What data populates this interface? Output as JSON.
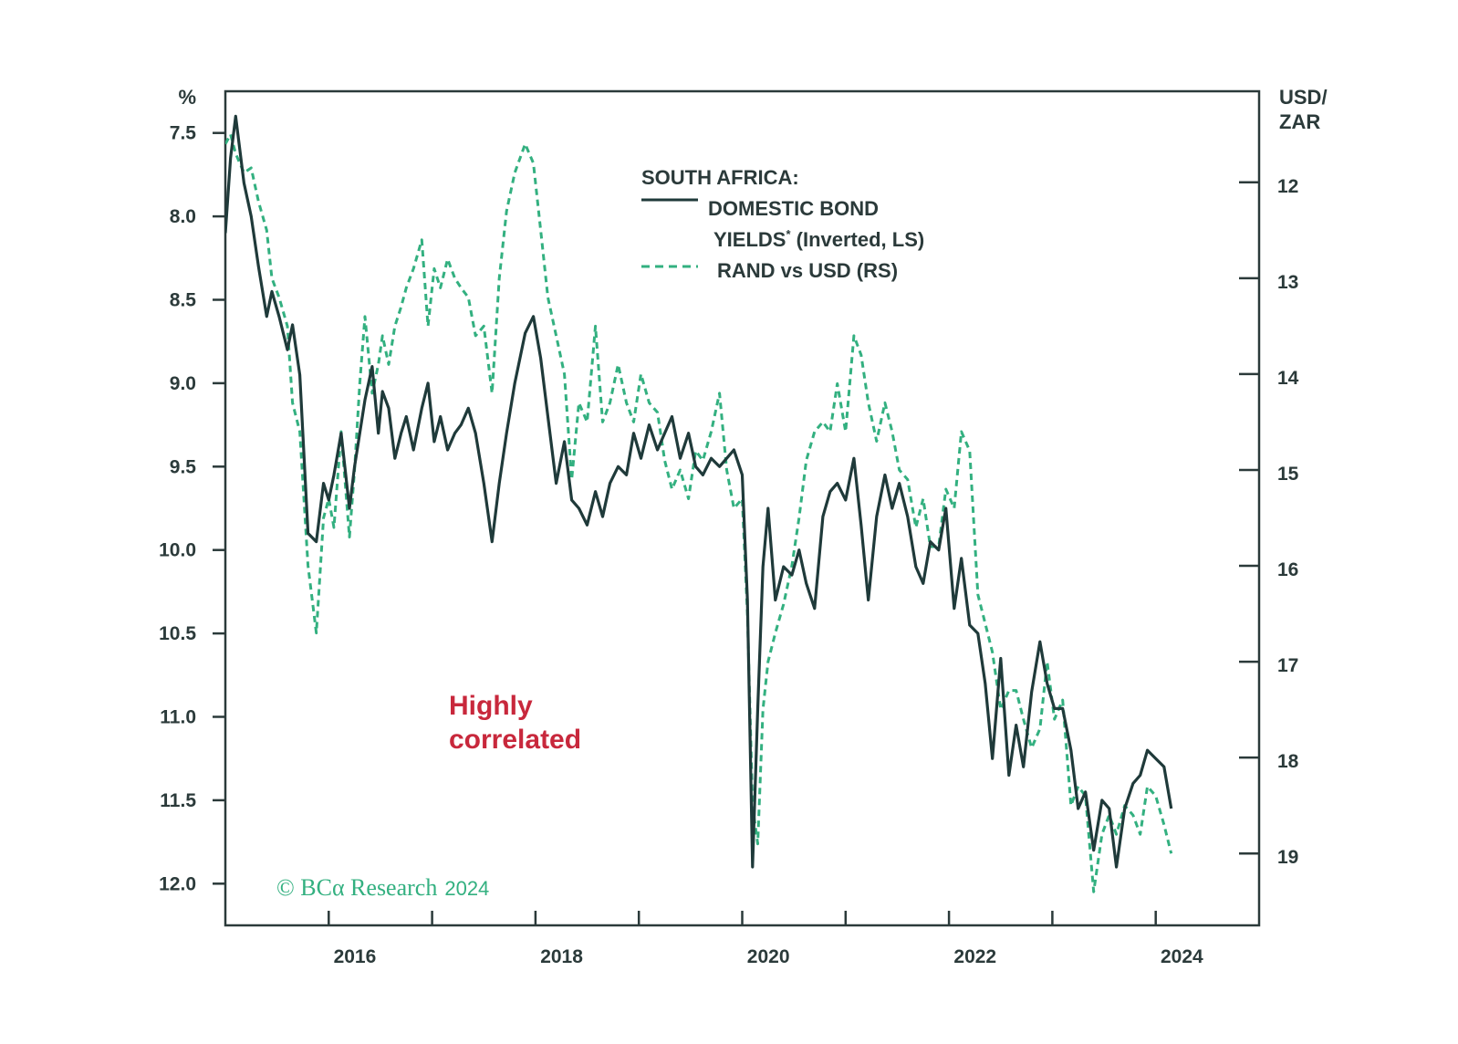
{
  "chart_data": {
    "type": "line",
    "title": "SOUTH AFRICA:",
    "left_axis": {
      "unit_label": "%",
      "inverted": true,
      "ylim": [
        7.25,
        12.25
      ],
      "ticks": [
        "7.5",
        "8.0",
        "8.5",
        "9.0",
        "9.5",
        "10.0",
        "10.5",
        "11.0",
        "11.5",
        "12.0"
      ],
      "tick_values": [
        7.5,
        8.0,
        8.5,
        9.0,
        9.5,
        10.0,
        10.5,
        11.0,
        11.5,
        12.0
      ]
    },
    "right_axis": {
      "unit_label_line1": "USD/",
      "unit_label_line2": "ZAR",
      "ylim": [
        11.05,
        19.75
      ],
      "ticks": [
        "12",
        "13",
        "14",
        "15",
        "16",
        "17",
        "18",
        "19"
      ],
      "tick_values": [
        12,
        13,
        14,
        15,
        16,
        17,
        18,
        19
      ]
    },
    "x_axis": {
      "xlim": [
        2015.0,
        2025.0
      ],
      "tick_values": [
        2016,
        2017,
        2018,
        2019,
        2020,
        2021,
        2022,
        2023,
        2024
      ],
      "labeled_ticks": [
        "2016",
        "2018",
        "2020",
        "2022",
        "2024"
      ],
      "label_positions": [
        2016.5,
        2018.5,
        2020.5,
        2022.5,
        2024.5
      ]
    },
    "legend": {
      "heading": "SOUTH AFRICA:",
      "series1_line1": "DOMESTIC BOND",
      "series1_line2": "YIELDS",
      "series1_sup": "*",
      "series1_suffix": " (Inverted, LS)",
      "series2": "RAND vs USD (RS)",
      "placement": "top-center"
    },
    "series": [
      {
        "name": "DOMESTIC BOND YIELDS* (Inverted, LS)",
        "axis": "left",
        "style": "solid",
        "color": "#1f3a3a",
        "x": [
          2015.0,
          2015.05,
          2015.1,
          2015.18,
          2015.25,
          2015.32,
          2015.4,
          2015.45,
          2015.52,
          2015.6,
          2015.65,
          2015.72,
          2015.8,
          2015.88,
          2015.95,
          2016.0,
          2016.05,
          2016.12,
          2016.2,
          2016.25,
          2016.3,
          2016.35,
          2016.42,
          2016.48,
          2016.52,
          2016.58,
          2016.64,
          2016.7,
          2016.75,
          2016.82,
          2016.9,
          2016.96,
          2017.02,
          2017.08,
          2017.15,
          2017.22,
          2017.28,
          2017.35,
          2017.42,
          2017.5,
          2017.58,
          2017.65,
          2017.72,
          2017.8,
          2017.9,
          2017.98,
          2018.05,
          2018.12,
          2018.2,
          2018.28,
          2018.35,
          2018.42,
          2018.5,
          2018.58,
          2018.65,
          2018.72,
          2018.8,
          2018.88,
          2018.95,
          2019.02,
          2019.1,
          2019.18,
          2019.25,
          2019.32,
          2019.4,
          2019.48,
          2019.55,
          2019.62,
          2019.7,
          2019.78,
          2019.85,
          2019.92,
          2020.0,
          2020.05,
          2020.1,
          2020.15,
          2020.2,
          2020.25,
          2020.32,
          2020.4,
          2020.48,
          2020.55,
          2020.62,
          2020.7,
          2020.78,
          2020.85,
          2020.92,
          2021.0,
          2021.08,
          2021.15,
          2021.22,
          2021.3,
          2021.38,
          2021.45,
          2021.52,
          2021.6,
          2021.68,
          2021.75,
          2021.82,
          2021.9,
          2021.97,
          2022.05,
          2022.12,
          2022.2,
          2022.28,
          2022.35,
          2022.42,
          2022.5,
          2022.58,
          2022.65,
          2022.72,
          2022.8,
          2022.88,
          2022.95,
          2023.02,
          2023.1,
          2023.18,
          2023.25,
          2023.32,
          2023.4,
          2023.48,
          2023.55,
          2023.62,
          2023.7,
          2023.78,
          2023.85,
          2023.92,
          2024.0,
          2024.08,
          2024.15
        ],
        "values": [
          8.1,
          7.65,
          7.4,
          7.8,
          8.0,
          8.3,
          8.6,
          8.45,
          8.6,
          8.8,
          8.65,
          8.95,
          9.9,
          9.95,
          9.6,
          9.7,
          9.55,
          9.3,
          9.75,
          9.5,
          9.3,
          9.1,
          8.9,
          9.3,
          9.05,
          9.15,
          9.45,
          9.3,
          9.2,
          9.4,
          9.15,
          9.0,
          9.35,
          9.2,
          9.4,
          9.3,
          9.25,
          9.15,
          9.3,
          9.6,
          9.95,
          9.6,
          9.3,
          9.0,
          8.7,
          8.6,
          8.85,
          9.2,
          9.6,
          9.35,
          9.7,
          9.75,
          9.85,
          9.65,
          9.8,
          9.6,
          9.5,
          9.55,
          9.3,
          9.45,
          9.25,
          9.4,
          9.3,
          9.2,
          9.45,
          9.3,
          9.5,
          9.55,
          9.45,
          9.5,
          9.45,
          9.4,
          9.55,
          10.3,
          11.9,
          10.95,
          10.1,
          9.75,
          10.3,
          10.1,
          10.15,
          10.0,
          10.2,
          10.35,
          9.8,
          9.65,
          9.6,
          9.7,
          9.45,
          9.85,
          10.3,
          9.8,
          9.55,
          9.75,
          9.6,
          9.8,
          10.1,
          10.2,
          9.95,
          10.0,
          9.75,
          10.35,
          10.05,
          10.45,
          10.5,
          10.8,
          11.25,
          10.65,
          11.35,
          11.05,
          11.3,
          10.85,
          10.55,
          10.8,
          10.95,
          10.95,
          11.2,
          11.55,
          11.45,
          11.8,
          11.5,
          11.55,
          11.9,
          11.55,
          11.4,
          11.35,
          11.2,
          11.25,
          11.3,
          11.55
        ],
        "end_value": 11.55
      },
      {
        "name": "RAND vs USD (RS)",
        "axis": "right",
        "style": "dashed",
        "color": "#33b080",
        "x": [
          2015.0,
          2015.05,
          2015.1,
          2015.18,
          2015.25,
          2015.32,
          2015.4,
          2015.45,
          2015.52,
          2015.6,
          2015.65,
          2015.72,
          2015.8,
          2015.88,
          2015.95,
          2016.0,
          2016.05,
          2016.12,
          2016.2,
          2016.25,
          2016.3,
          2016.35,
          2016.42,
          2016.48,
          2016.52,
          2016.58,
          2016.64,
          2016.7,
          2016.75,
          2016.82,
          2016.9,
          2016.96,
          2017.02,
          2017.08,
          2017.15,
          2017.22,
          2017.28,
          2017.35,
          2017.42,
          2017.5,
          2017.58,
          2017.65,
          2017.72,
          2017.8,
          2017.9,
          2017.98,
          2018.05,
          2018.12,
          2018.2,
          2018.28,
          2018.35,
          2018.42,
          2018.5,
          2018.58,
          2018.65,
          2018.72,
          2018.8,
          2018.88,
          2018.95,
          2019.02,
          2019.1,
          2019.18,
          2019.25,
          2019.32,
          2019.4,
          2019.48,
          2019.55,
          2019.62,
          2019.7,
          2019.78,
          2019.85,
          2019.92,
          2020.0,
          2020.05,
          2020.1,
          2020.15,
          2020.2,
          2020.25,
          2020.32,
          2020.4,
          2020.48,
          2020.55,
          2020.62,
          2020.7,
          2020.78,
          2020.85,
          2020.92,
          2021.0,
          2021.08,
          2021.15,
          2021.22,
          2021.3,
          2021.38,
          2021.45,
          2021.52,
          2021.6,
          2021.68,
          2021.75,
          2021.82,
          2021.9,
          2021.97,
          2022.05,
          2022.12,
          2022.2,
          2022.28,
          2022.35,
          2022.42,
          2022.5,
          2022.58,
          2022.65,
          2022.72,
          2022.8,
          2022.88,
          2022.95,
          2023.02,
          2023.1,
          2023.18,
          2023.25,
          2023.32,
          2023.4,
          2023.48,
          2023.55,
          2023.62,
          2023.7,
          2023.78,
          2023.85,
          2023.92,
          2024.0,
          2024.08,
          2024.15
        ],
        "values": [
          11.6,
          11.5,
          11.7,
          11.9,
          11.85,
          12.2,
          12.5,
          13.0,
          13.2,
          13.5,
          14.3,
          14.6,
          16.0,
          16.7,
          15.5,
          15.3,
          15.6,
          14.6,
          15.7,
          15.0,
          14.1,
          13.4,
          14.2,
          13.9,
          13.6,
          13.9,
          13.5,
          13.3,
          13.1,
          12.9,
          12.6,
          13.5,
          12.9,
          13.1,
          12.8,
          13.0,
          13.1,
          13.2,
          13.6,
          13.5,
          14.2,
          13.0,
          12.3,
          11.9,
          11.6,
          11.8,
          12.5,
          13.2,
          13.6,
          14.0,
          15.1,
          14.3,
          14.5,
          13.5,
          14.5,
          14.3,
          13.9,
          14.3,
          14.5,
          14.0,
          14.3,
          14.4,
          14.9,
          15.2,
          15.0,
          15.3,
          14.8,
          14.9,
          14.6,
          14.2,
          15.0,
          15.4,
          15.3,
          16.5,
          18.5,
          18.9,
          17.5,
          17.0,
          16.7,
          16.4,
          16.0,
          15.5,
          14.9,
          14.6,
          14.5,
          14.6,
          14.1,
          14.6,
          13.6,
          13.8,
          14.3,
          14.7,
          14.3,
          14.6,
          15.0,
          15.1,
          15.6,
          15.3,
          15.8,
          15.8,
          15.2,
          15.4,
          14.6,
          14.8,
          16.3,
          16.6,
          16.9,
          17.5,
          17.3,
          17.3,
          17.6,
          17.9,
          17.7,
          17.0,
          17.6,
          17.4,
          18.5,
          18.3,
          18.4,
          19.4,
          18.8,
          18.6,
          18.8,
          18.5,
          18.6,
          18.8,
          18.3,
          18.4,
          18.7,
          19.0
        ],
        "end_value": 19.0
      }
    ],
    "annotations": [
      {
        "text_line1": "Highly",
        "text_line2": "correlated",
        "color": "#c8283c"
      }
    ],
    "credit": {
      "text": "© BCα Research",
      "year": "2024",
      "color": "#33b080"
    },
    "grid": false
  }
}
